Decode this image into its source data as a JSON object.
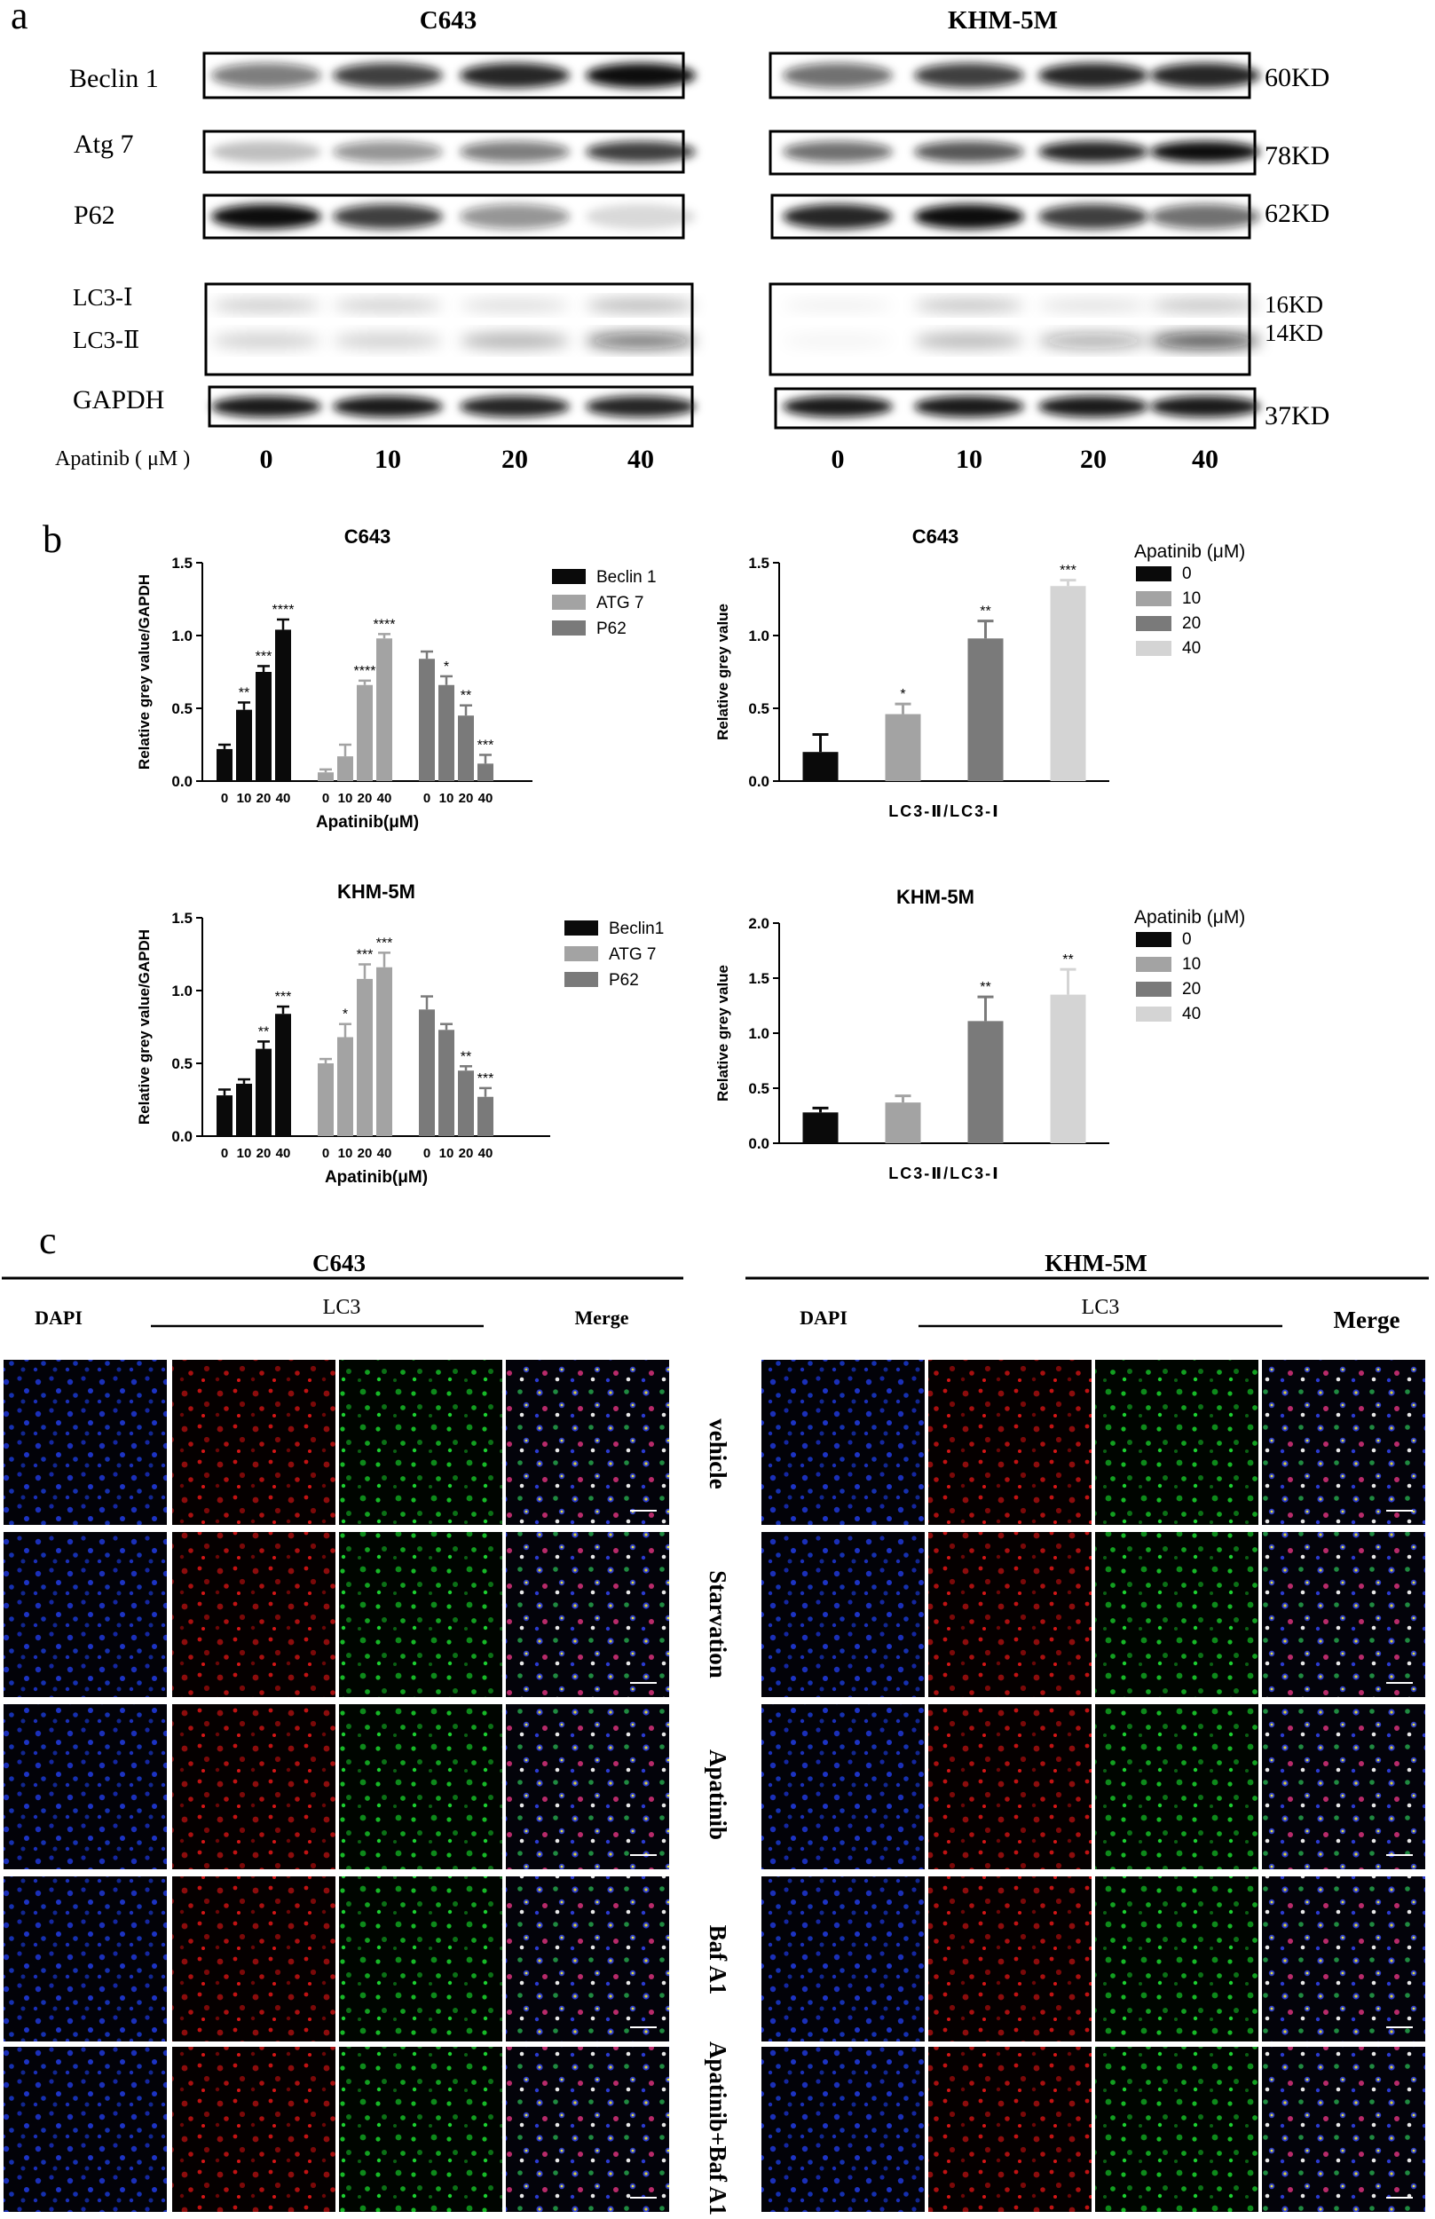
{
  "panel_a": {
    "label": "a",
    "groups": [
      {
        "title": "C643"
      },
      {
        "title": "KHM-5M"
      }
    ],
    "rows": [
      {
        "name": "Beclin 1",
        "kd": "60KD"
      },
      {
        "name": "Atg 7",
        "kd": "78KD"
      },
      {
        "name": "P62",
        "kd": "62KD"
      },
      {
        "name": "LC3-Ⅰ",
        "kd": "16KD"
      },
      {
        "name": "LC3-Ⅱ",
        "kd": "14KD"
      },
      {
        "name": "GAPDH",
        "kd": "37KD"
      }
    ],
    "dose_label": "Apatinib ( μM )",
    "doses": [
      "0",
      "10",
      "20",
      "40"
    ]
  },
  "panel_b": {
    "label": "b"
  },
  "chart_data": [
    {
      "type": "bar",
      "title": "C643",
      "ylabel": "Relative grey value/GAPDH",
      "xlabel": "Apatinib(μM)",
      "ylim": [
        0,
        1.5
      ],
      "yticks": [
        "0.0",
        "0.5",
        "1.0",
        "1.5"
      ],
      "categories": [
        "0",
        "10",
        "20",
        "40"
      ],
      "legend_position": "right",
      "series": [
        {
          "name": "Beclin 1",
          "color": "#0a0a0a",
          "values": [
            0.22,
            0.49,
            0.75,
            1.04
          ],
          "errors": [
            0.03,
            0.05,
            0.04,
            0.07
          ],
          "sig": [
            "",
            "**",
            "***",
            "****"
          ]
        },
        {
          "name": "ATG 7",
          "color": "#a3a3a3",
          "values": [
            0.06,
            0.17,
            0.66,
            0.98
          ],
          "errors": [
            0.02,
            0.08,
            0.03,
            0.03
          ],
          "sig": [
            "",
            "",
            "****",
            "****"
          ]
        },
        {
          "name": "P62",
          "color": "#7a7a7a",
          "values": [
            0.84,
            0.66,
            0.45,
            0.12
          ],
          "errors": [
            0.05,
            0.06,
            0.07,
            0.06
          ],
          "sig": [
            "",
            "*",
            "**",
            "***"
          ]
        }
      ]
    },
    {
      "type": "bar",
      "title": "C643",
      "ylabel": "Relative grey value",
      "xlabel": "LC3-Ⅱ/LC3-Ⅰ",
      "ylim": [
        0,
        1.5
      ],
      "yticks": [
        "0.0",
        "0.5",
        "1.0",
        "1.5"
      ],
      "legend_title": "Apatinib (μM)",
      "legend_position": "top-right",
      "categories": [
        "0",
        "10",
        "20",
        "40"
      ],
      "colors": [
        "#0a0a0a",
        "#a3a3a3",
        "#7a7a7a",
        "#d4d4d4"
      ],
      "values": [
        0.2,
        0.46,
        0.98,
        1.34
      ],
      "errors": [
        0.12,
        0.07,
        0.12,
        0.04
      ],
      "sig": [
        "",
        "*",
        "**",
        "***"
      ]
    },
    {
      "type": "bar",
      "title": "KHM-5M",
      "ylabel": "Relative grey value/GAPDH",
      "xlabel": "Apatinib(μM)",
      "ylim": [
        0,
        1.5
      ],
      "yticks": [
        "0.0",
        "0.5",
        "1.0",
        "1.5"
      ],
      "categories": [
        "0",
        "10",
        "20",
        "40"
      ],
      "legend_position": "right",
      "series": [
        {
          "name": "Beclin1",
          "color": "#0a0a0a",
          "values": [
            0.28,
            0.36,
            0.6,
            0.84
          ],
          "errors": [
            0.04,
            0.03,
            0.05,
            0.05
          ],
          "sig": [
            "",
            "",
            "**",
            "***"
          ]
        },
        {
          "name": "ATG 7",
          "color": "#a3a3a3",
          "values": [
            0.5,
            0.68,
            1.08,
            1.16
          ],
          "errors": [
            0.03,
            0.09,
            0.1,
            0.1
          ],
          "sig": [
            "",
            "*",
            "***",
            "***"
          ]
        },
        {
          "name": "P62",
          "color": "#7a7a7a",
          "values": [
            0.87,
            0.73,
            0.45,
            0.27
          ],
          "errors": [
            0.09,
            0.04,
            0.03,
            0.06
          ],
          "sig": [
            "",
            "",
            "**",
            "***"
          ]
        }
      ]
    },
    {
      "type": "bar",
      "title": "KHM-5M",
      "ylabel": "Relative grey value",
      "xlabel": "LC3-Ⅱ/LC3-Ⅰ",
      "ylim": [
        0,
        2.0
      ],
      "yticks": [
        "0.0",
        "0.5",
        "1.0",
        "1.5",
        "2.0"
      ],
      "legend_title": "Apatinib (μM)",
      "legend_position": "top-right",
      "categories": [
        "0",
        "10",
        "20",
        "40"
      ],
      "colors": [
        "#0a0a0a",
        "#a3a3a3",
        "#7a7a7a",
        "#d4d4d4"
      ],
      "values": [
        0.28,
        0.37,
        1.11,
        1.35
      ],
      "errors": [
        0.04,
        0.06,
        0.22,
        0.23
      ],
      "sig": [
        "",
        "",
        "**",
        "**"
      ]
    }
  ],
  "panel_c": {
    "label": "c",
    "groups": [
      {
        "title": "C643",
        "cols": [
          "DAPI",
          "LC3",
          "Merge"
        ]
      },
      {
        "title": "KHM-5M",
        "cols": [
          "DAPI",
          "LC3",
          "Merge"
        ]
      }
    ],
    "conditions": [
      "vehicle",
      "Starvation",
      "Apatinib",
      "Baf A1",
      "Apatinib+Baf A1"
    ]
  }
}
